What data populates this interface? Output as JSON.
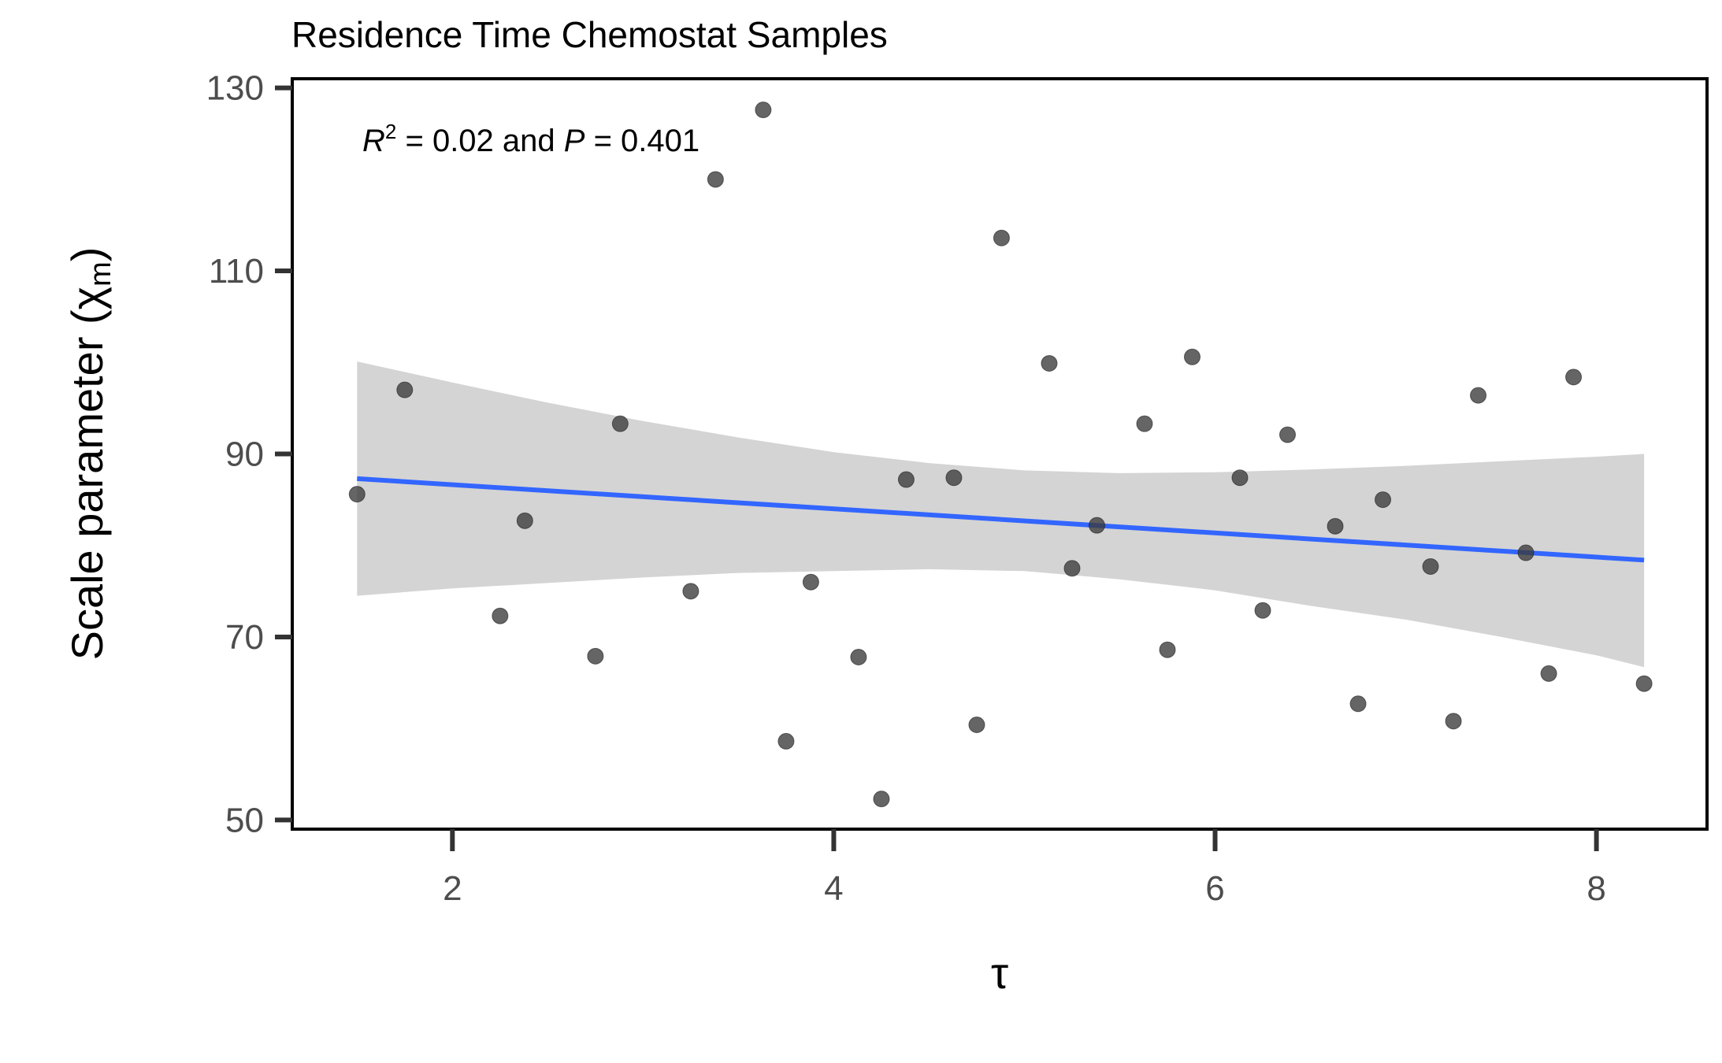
{
  "chart_data": {
    "type": "scatter",
    "title": "Residence Time Chemostat Samples",
    "xlabel": "τ",
    "ylabel_main": "Scale parameter (χ",
    "ylabel_sub": "m",
    "ylabel_close": ")",
    "annotation": {
      "r_symbol": "R",
      "r_exp": "2",
      "r_value": " = 0.02 and ",
      "p_symbol": "P",
      "p_value": " = 0.401"
    },
    "xlim": [
      1.16,
      8.58
    ],
    "ylim": [
      49.0,
      131.0
    ],
    "x_ticks": [
      2,
      4,
      6,
      8
    ],
    "x_tick_labels": [
      "2",
      "4",
      "6",
      "8"
    ],
    "y_ticks": [
      50,
      70,
      90,
      110,
      130
    ],
    "y_tick_labels": [
      "50",
      "70",
      "90",
      "110",
      "130"
    ],
    "points": [
      {
        "x": 1.5,
        "y": 85.6
      },
      {
        "x": 1.75,
        "y": 97.0
      },
      {
        "x": 2.25,
        "y": 72.3
      },
      {
        "x": 2.38,
        "y": 82.7
      },
      {
        "x": 2.75,
        "y": 67.9
      },
      {
        "x": 2.88,
        "y": 93.3
      },
      {
        "x": 3.25,
        "y": 75.0
      },
      {
        "x": 3.38,
        "y": 120.0
      },
      {
        "x": 3.63,
        "y": 127.6
      },
      {
        "x": 3.75,
        "y": 58.6
      },
      {
        "x": 3.88,
        "y": 76.0
      },
      {
        "x": 4.13,
        "y": 67.8
      },
      {
        "x": 4.25,
        "y": 52.3
      },
      {
        "x": 4.38,
        "y": 87.2
      },
      {
        "x": 4.63,
        "y": 87.4
      },
      {
        "x": 4.75,
        "y": 60.4
      },
      {
        "x": 4.88,
        "y": 113.6
      },
      {
        "x": 5.13,
        "y": 99.9
      },
      {
        "x": 5.25,
        "y": 77.5
      },
      {
        "x": 5.38,
        "y": 82.2
      },
      {
        "x": 5.63,
        "y": 93.3
      },
      {
        "x": 5.75,
        "y": 68.6
      },
      {
        "x": 5.88,
        "y": 100.6
      },
      {
        "x": 6.13,
        "y": 87.4
      },
      {
        "x": 6.25,
        "y": 72.9
      },
      {
        "x": 6.38,
        "y": 92.1
      },
      {
        "x": 6.63,
        "y": 82.1
      },
      {
        "x": 6.75,
        "y": 62.7
      },
      {
        "x": 6.88,
        "y": 85.0
      },
      {
        "x": 7.13,
        "y": 77.7
      },
      {
        "x": 7.25,
        "y": 60.8
      },
      {
        "x": 7.38,
        "y": 96.4
      },
      {
        "x": 7.63,
        "y": 79.2
      },
      {
        "x": 7.75,
        "y": 66.0
      },
      {
        "x": 7.88,
        "y": 98.4
      },
      {
        "x": 8.25,
        "y": 64.9
      }
    ],
    "fit_line": {
      "x": [
        1.5,
        8.25
      ],
      "y": [
        87.3,
        78.4
      ]
    },
    "confidence_band": {
      "x": [
        1.5,
        2.0,
        2.5,
        3.0,
        3.5,
        4.0,
        4.5,
        5.0,
        5.5,
        6.0,
        6.5,
        7.0,
        7.5,
        8.0,
        8.25
      ],
      "upper": [
        100.1,
        97.8,
        95.6,
        93.6,
        91.8,
        90.2,
        89.0,
        88.2,
        87.9,
        88.0,
        88.3,
        88.7,
        89.2,
        89.7,
        90.0
      ],
      "lower": [
        74.5,
        75.3,
        75.9,
        76.5,
        77.0,
        77.2,
        77.4,
        77.2,
        76.3,
        75.1,
        73.4,
        71.9,
        70.0,
        68.0,
        66.7
      ]
    },
    "grid": false,
    "legend": "none",
    "colors": {
      "points": "#3a3a3a",
      "line": "#3366ff",
      "band": "#d4d4d4",
      "axis": "#000000",
      "tick_text": "#4d4d4d"
    }
  }
}
